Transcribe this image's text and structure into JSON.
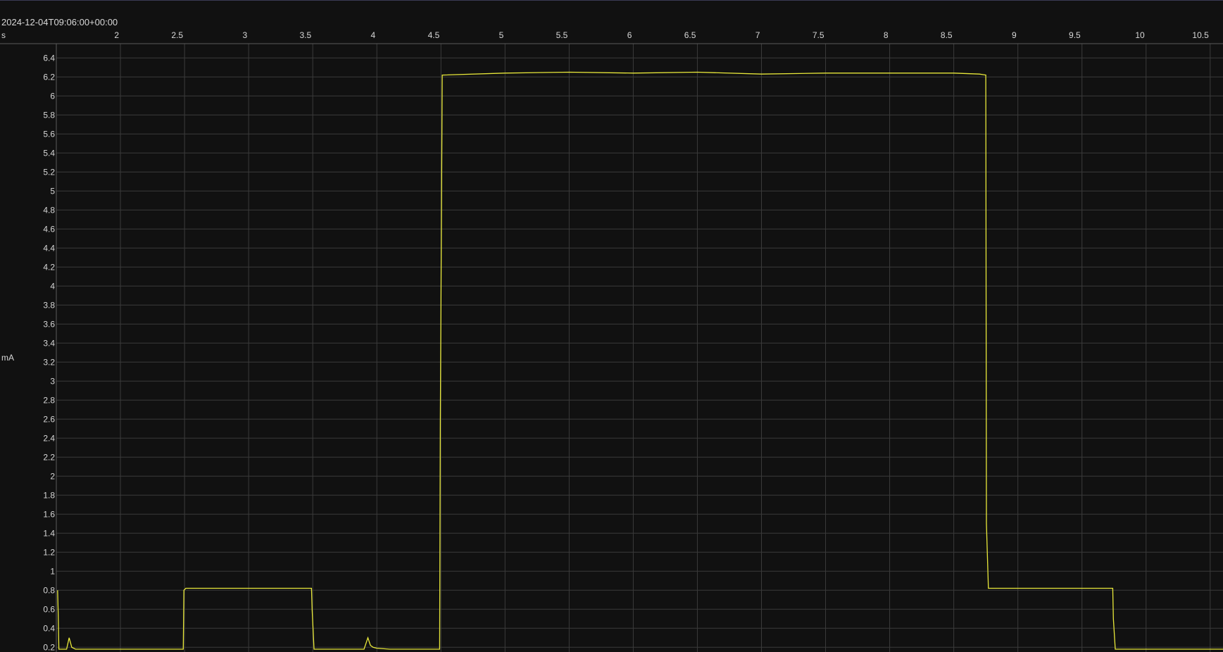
{
  "header": {
    "timestamp": "2024-12-04T09:06:00+00:00"
  },
  "chart_data": {
    "type": "line",
    "title": "",
    "xlabel": "s",
    "ylabel": "mA",
    "xlim": [
      1.5,
      10.6
    ],
    "ylim": [
      0.15,
      6.55
    ],
    "x_ticks": [
      2,
      2.5,
      3,
      3.5,
      4,
      4.5,
      5,
      5.5,
      6,
      6.5,
      7,
      7.5,
      8,
      8.5,
      9,
      9.5,
      10,
      10.5
    ],
    "x_tick_labels": [
      "2",
      "2.5",
      "3",
      "3.5",
      "4",
      "4.5",
      "5",
      "5.5",
      "6",
      "6.5",
      "7",
      "7.5",
      "8",
      "8.5",
      "9",
      "9.5",
      "10",
      "10.5"
    ],
    "y_ticks": [
      0.2,
      0.4,
      0.6,
      0.8,
      1,
      1.2,
      1.4,
      1.6,
      1.8,
      2,
      2.2,
      2.4,
      2.6,
      2.8,
      3,
      3.2,
      3.4,
      3.6,
      3.8,
      4,
      4.2,
      4.4,
      4.6,
      4.8,
      5,
      5.2,
      5.4,
      5.6,
      5.8,
      6,
      6.2,
      6.4
    ],
    "y_tick_labels": [
      "0.2",
      "0.4",
      "0.6",
      "0.8",
      "1",
      "1.2",
      "1.4",
      "1.6",
      "1.8",
      "2",
      "2.2",
      "2.4",
      "2.6",
      "2.8",
      "3",
      "3.2",
      "3.4",
      "3.6",
      "3.8",
      "4",
      "4.2",
      "4.4",
      "4.6",
      "4.8",
      "5",
      "5.2",
      "5.4",
      "5.6",
      "5.8",
      "6",
      "6.2",
      "6.4"
    ],
    "grid": true,
    "legend": "none",
    "colors": {
      "background": "#111111",
      "grid": "#3b3b3b",
      "axis": "#5a5a5a",
      "series": "#e8e83a"
    },
    "series": [
      {
        "x": [
          1.51,
          1.515,
          1.52,
          1.53,
          1.58,
          1.6,
          1.62,
          1.65,
          1.7,
          1.8,
          2.0,
          2.2,
          2.49,
          2.495,
          2.51,
          2.7,
          3.0,
          3.2,
          3.49,
          3.495,
          3.51,
          3.7,
          3.9,
          3.93,
          3.95,
          3.97,
          4.0,
          4.1,
          4.2,
          4.49,
          4.495,
          4.51,
          5.0,
          5.5,
          6.0,
          6.5,
          7.0,
          7.5,
          8.0,
          8.5,
          8.7,
          8.75,
          8.755,
          8.77,
          9.0,
          9.5,
          9.74,
          9.745,
          9.76,
          10.0,
          10.6
        ],
        "y": [
          0.8,
          0.55,
          0.18,
          0.18,
          0.18,
          0.3,
          0.2,
          0.18,
          0.18,
          0.18,
          0.18,
          0.18,
          0.18,
          0.8,
          0.82,
          0.82,
          0.82,
          0.82,
          0.82,
          0.6,
          0.18,
          0.18,
          0.18,
          0.3,
          0.22,
          0.2,
          0.19,
          0.18,
          0.18,
          0.18,
          2.6,
          6.22,
          6.24,
          6.25,
          6.24,
          6.25,
          6.23,
          6.24,
          6.24,
          6.24,
          6.23,
          6.22,
          1.5,
          0.82,
          0.82,
          0.82,
          0.82,
          0.5,
          0.18,
          0.18,
          0.18
        ]
      }
    ]
  }
}
